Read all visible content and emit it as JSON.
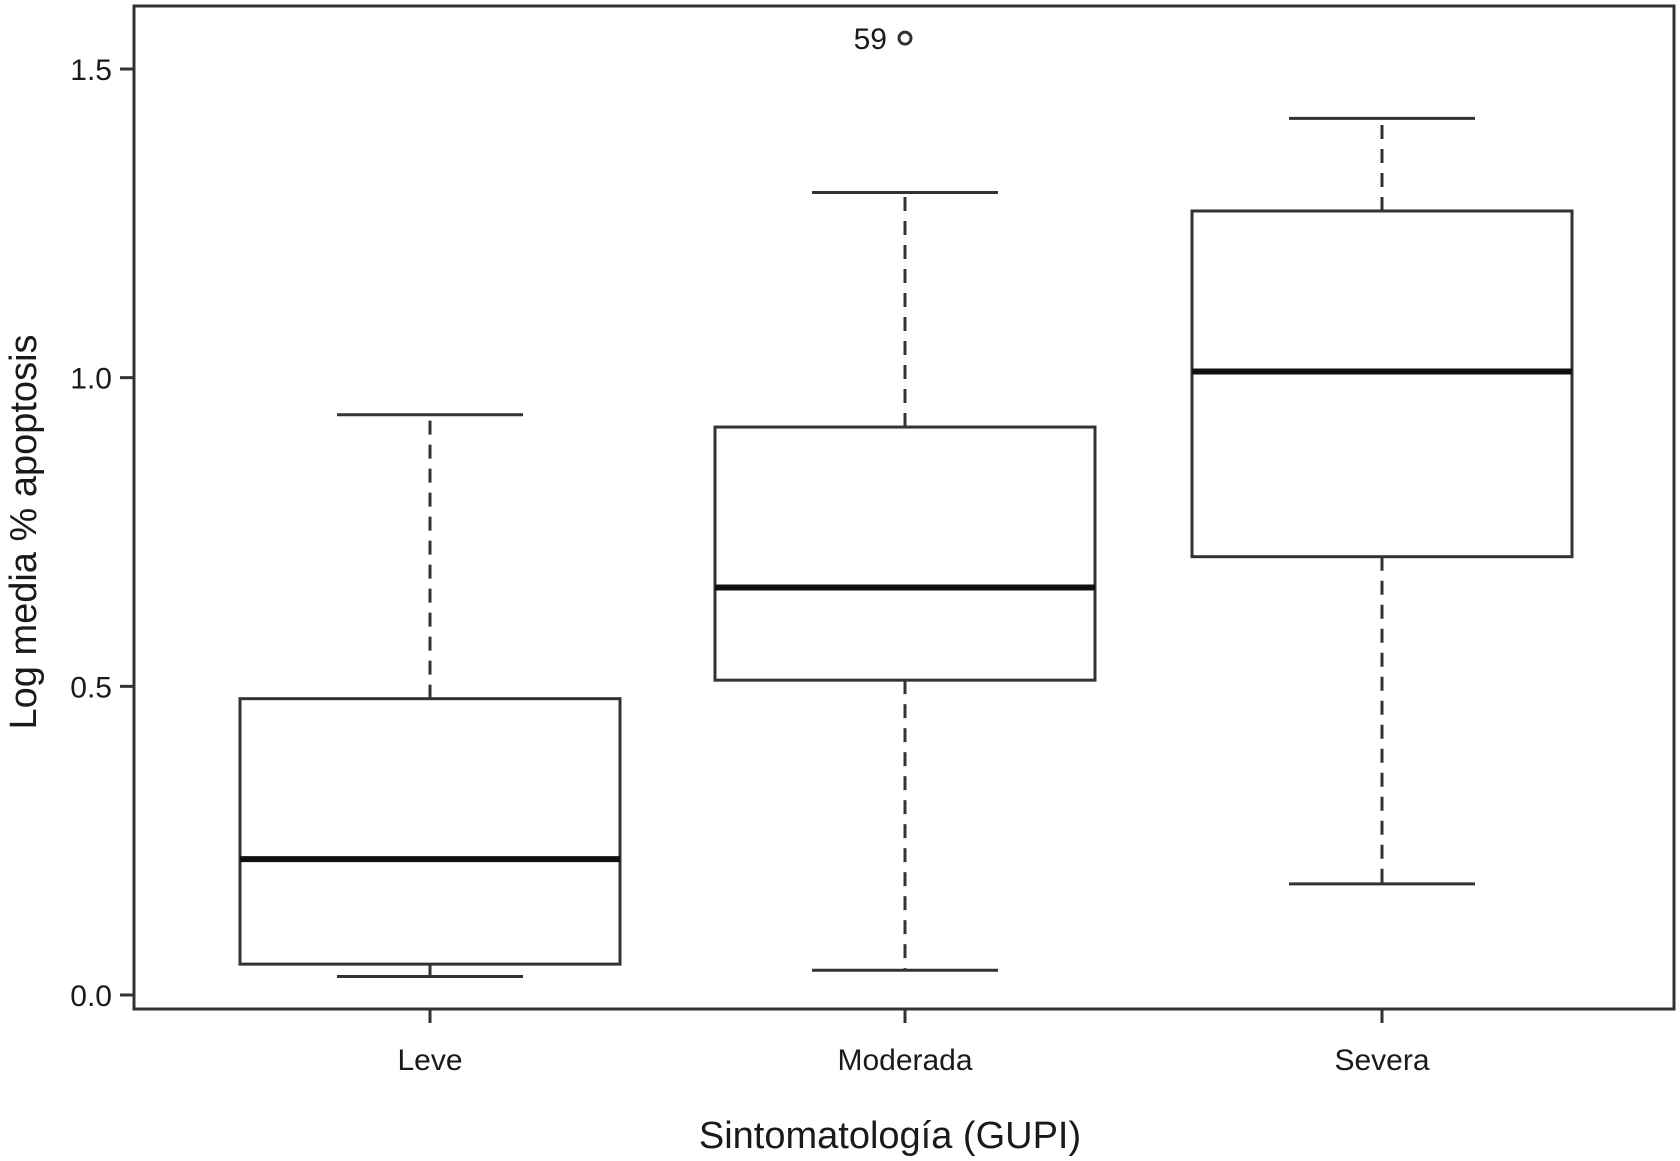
{
  "chart_data": {
    "type": "box",
    "title": "",
    "xlabel": "Sintomatología (GUPI)",
    "ylabel": "Log media % apoptosis",
    "ylim": [
      -0.03,
      1.62
    ],
    "yticks": [
      {
        "value": 0.0,
        "label": "0.0"
      },
      {
        "value": 0.5,
        "label": "0.5"
      },
      {
        "value": 1.0,
        "label": "1.0"
      },
      {
        "value": 1.5,
        "label": "1.5"
      }
    ],
    "categories": [
      "Leve",
      "Moderada",
      "Severa"
    ],
    "boxes": [
      {
        "category": "Leve",
        "whisker_low": 0.03,
        "q1": 0.05,
        "median": 0.22,
        "q3": 0.48,
        "whisker_high": 0.94
      },
      {
        "category": "Moderada",
        "whisker_low": 0.04,
        "q1": 0.51,
        "median": 0.66,
        "q3": 0.92,
        "whisker_high": 1.3
      },
      {
        "category": "Severa",
        "whisker_low": 0.18,
        "q1": 0.71,
        "median": 1.01,
        "q3": 1.27,
        "whisker_high": 1.42
      }
    ],
    "outliers": [
      {
        "category": "Moderada",
        "value": 1.55,
        "label": "59"
      }
    ],
    "grid": false,
    "legend": "none",
    "colors": {
      "stroke": "#333333",
      "median": "#111111",
      "background": "#ffffff"
    }
  }
}
